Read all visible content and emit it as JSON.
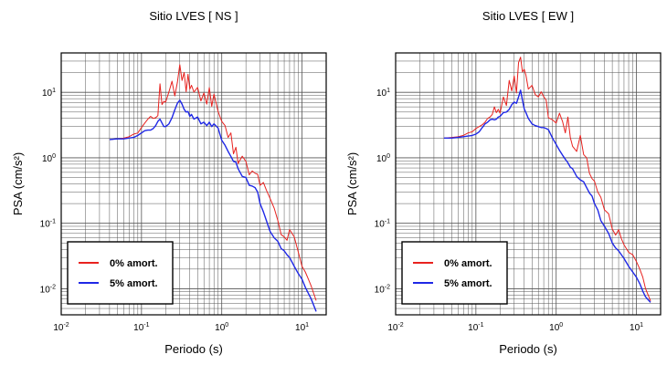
{
  "chart_data": [
    {
      "type": "line",
      "title": "Sitio LVES [ NS ]",
      "xlabel": "Periodo (s)",
      "ylabel": "PSA (cm/s²)",
      "xscale": "log",
      "yscale": "log",
      "xlim": [
        0.01,
        20
      ],
      "ylim": [
        0.004,
        40
      ],
      "grid": true,
      "legend_position": "bottom-left",
      "xticks": [
        {
          "value": 0.01,
          "base": "10",
          "exp": "-2"
        },
        {
          "value": 0.1,
          "base": "10",
          "exp": "-1"
        },
        {
          "value": 1,
          "base": "10",
          "exp": "0"
        },
        {
          "value": 10,
          "base": "10",
          "exp": "1"
        }
      ],
      "yticks": [
        {
          "value": 0.01,
          "base": "10",
          "exp": "-2"
        },
        {
          "value": 0.1,
          "base": "10",
          "exp": "-1"
        },
        {
          "value": 1,
          "base": "10",
          "exp": "0"
        },
        {
          "value": 10,
          "base": "10",
          "exp": "1"
        }
      ],
      "series": [
        {
          "name": "0% amort.",
          "color": "#e8221f",
          "x": [
            0.04,
            0.05,
            0.06,
            0.07,
            0.08,
            0.09,
            0.1,
            0.11,
            0.12,
            0.13,
            0.14,
            0.15,
            0.16,
            0.17,
            0.18,
            0.19,
            0.2,
            0.22,
            0.24,
            0.26,
            0.28,
            0.3,
            0.32,
            0.34,
            0.36,
            0.38,
            0.4,
            0.42,
            0.45,
            0.5,
            0.55,
            0.6,
            0.65,
            0.7,
            0.75,
            0.8,
            0.9,
            1.0,
            1.1,
            1.2,
            1.3,
            1.4,
            1.5,
            1.6,
            1.8,
            2.0,
            2.2,
            2.4,
            2.6,
            2.8,
            3.0,
            3.3,
            3.6,
            4.0,
            4.5,
            5.0,
            5.5,
            6.0,
            6.5,
            7.0,
            8.0,
            9.0,
            10.0,
            11.0,
            12.0,
            13.0,
            15.0
          ],
          "y": [
            1.9,
            1.95,
            2.0,
            2.1,
            2.3,
            2.4,
            2.9,
            3.4,
            3.9,
            4.3,
            4.0,
            4.1,
            4.4,
            13.5,
            6.5,
            7.3,
            7.1,
            10.2,
            14.8,
            8.8,
            14.2,
            26.5,
            15.2,
            20.1,
            10.2,
            18.9,
            11.2,
            12.8,
            10.1,
            11.9,
            7.4,
            9.8,
            6.6,
            11.8,
            6.1,
            9.4,
            5.1,
            3.6,
            3.1,
            2.05,
            2.4,
            1.15,
            1.45,
            0.82,
            1.06,
            0.88,
            0.55,
            0.63,
            0.58,
            0.56,
            0.38,
            0.42,
            0.32,
            0.24,
            0.17,
            0.11,
            0.067,
            0.062,
            0.055,
            0.08,
            0.062,
            0.036,
            0.022,
            0.018,
            0.014,
            0.011,
            0.0066
          ]
        },
        {
          "name": "5% amort.",
          "color": "#1f28e6",
          "x": [
            0.04,
            0.05,
            0.06,
            0.07,
            0.08,
            0.09,
            0.1,
            0.11,
            0.12,
            0.13,
            0.14,
            0.15,
            0.16,
            0.17,
            0.18,
            0.19,
            0.2,
            0.22,
            0.24,
            0.26,
            0.28,
            0.3,
            0.32,
            0.34,
            0.36,
            0.38,
            0.4,
            0.42,
            0.45,
            0.5,
            0.55,
            0.6,
            0.65,
            0.7,
            0.75,
            0.8,
            0.9,
            1.0,
            1.1,
            1.2,
            1.3,
            1.4,
            1.5,
            1.6,
            1.8,
            2.0,
            2.2,
            2.4,
            2.6,
            2.8,
            3.0,
            3.3,
            3.6,
            4.0,
            4.5,
            5.0,
            5.5,
            6.0,
            6.5,
            7.0,
            8.0,
            9.0,
            10.0,
            11.0,
            12.0,
            13.0,
            15.0
          ],
          "y": [
            1.9,
            1.95,
            1.95,
            2.0,
            2.05,
            2.2,
            2.4,
            2.6,
            2.65,
            2.65,
            2.8,
            3.1,
            3.6,
            3.9,
            3.4,
            3.0,
            3.0,
            3.3,
            4.1,
            5.4,
            6.8,
            7.6,
            6.6,
            5.5,
            5.0,
            5.1,
            4.3,
            4.6,
            3.9,
            4.2,
            3.3,
            3.5,
            3.1,
            3.5,
            3.0,
            3.3,
            2.85,
            1.85,
            1.55,
            1.25,
            1.05,
            0.88,
            0.86,
            0.68,
            0.52,
            0.5,
            0.38,
            0.37,
            0.35,
            0.3,
            0.2,
            0.15,
            0.11,
            0.075,
            0.06,
            0.053,
            0.041,
            0.038,
            0.033,
            0.03,
            0.022,
            0.017,
            0.014,
            0.0105,
            0.0085,
            0.007,
            0.0045
          ]
        }
      ]
    },
    {
      "type": "line",
      "title": "Sitio LVES [ EW ]",
      "xlabel": "Periodo (s)",
      "ylabel": "PSA (cm/s²)",
      "xscale": "log",
      "yscale": "log",
      "xlim": [
        0.01,
        20
      ],
      "ylim": [
        0.004,
        40
      ],
      "grid": true,
      "legend_position": "bottom-left",
      "xticks": [
        {
          "value": 0.01,
          "base": "10",
          "exp": "-2"
        },
        {
          "value": 0.1,
          "base": "10",
          "exp": "-1"
        },
        {
          "value": 1,
          "base": "10",
          "exp": "0"
        },
        {
          "value": 10,
          "base": "10",
          "exp": "1"
        }
      ],
      "yticks": [
        {
          "value": 0.01,
          "base": "10",
          "exp": "-2"
        },
        {
          "value": 0.1,
          "base": "10",
          "exp": "-1"
        },
        {
          "value": 1,
          "base": "10",
          "exp": "0"
        },
        {
          "value": 10,
          "base": "10",
          "exp": "1"
        }
      ],
      "series": [
        {
          "name": "0% amort.",
          "color": "#e8221f",
          "x": [
            0.04,
            0.05,
            0.06,
            0.07,
            0.08,
            0.09,
            0.1,
            0.11,
            0.12,
            0.13,
            0.14,
            0.15,
            0.16,
            0.17,
            0.18,
            0.19,
            0.2,
            0.22,
            0.24,
            0.26,
            0.28,
            0.3,
            0.32,
            0.34,
            0.36,
            0.38,
            0.4,
            0.42,
            0.45,
            0.5,
            0.55,
            0.6,
            0.65,
            0.7,
            0.75,
            0.8,
            0.9,
            1.0,
            1.1,
            1.2,
            1.3,
            1.4,
            1.5,
            1.6,
            1.8,
            2.0,
            2.2,
            2.4,
            2.6,
            2.8,
            3.0,
            3.3,
            3.6,
            4.0,
            4.5,
            5.0,
            5.5,
            6.0,
            6.5,
            7.0,
            8.0,
            9.0,
            10.0,
            11.0,
            12.0,
            13.0,
            15.0
          ],
          "y": [
            2.0,
            2.05,
            2.1,
            2.2,
            2.4,
            2.5,
            2.8,
            3.0,
            3.2,
            3.5,
            4.0,
            4.2,
            4.6,
            6.0,
            4.9,
            5.5,
            4.8,
            8.5,
            6.3,
            15.2,
            10.5,
            17.8,
            9.8,
            28.5,
            34.5,
            20.5,
            22.5,
            18.3,
            11.2,
            12.8,
            9.2,
            8.5,
            10.2,
            8.6,
            7.6,
            4.1,
            3.8,
            3.4,
            4.8,
            3.6,
            2.4,
            4.2,
            2.05,
            1.5,
            1.25,
            2.2,
            1.12,
            1.0,
            0.58,
            0.48,
            0.44,
            0.3,
            0.25,
            0.16,
            0.14,
            0.082,
            0.066,
            0.08,
            0.058,
            0.047,
            0.036,
            0.033,
            0.026,
            0.02,
            0.015,
            0.01,
            0.0065
          ]
        },
        {
          "name": "5% amort.",
          "color": "#1f28e6",
          "x": [
            0.04,
            0.05,
            0.06,
            0.07,
            0.08,
            0.09,
            0.1,
            0.11,
            0.12,
            0.13,
            0.14,
            0.15,
            0.16,
            0.17,
            0.18,
            0.19,
            0.2,
            0.22,
            0.24,
            0.26,
            0.28,
            0.3,
            0.32,
            0.34,
            0.36,
            0.38,
            0.4,
            0.42,
            0.45,
            0.5,
            0.55,
            0.6,
            0.65,
            0.7,
            0.75,
            0.8,
            0.9,
            1.0,
            1.1,
            1.2,
            1.3,
            1.4,
            1.5,
            1.6,
            1.8,
            2.0,
            2.2,
            2.4,
            2.6,
            2.8,
            3.0,
            3.3,
            3.6,
            4.0,
            4.5,
            5.0,
            5.5,
            6.0,
            6.5,
            7.0,
            8.0,
            9.0,
            10.0,
            11.0,
            12.0,
            13.0,
            15.0
          ],
          "y": [
            2.0,
            2.0,
            2.05,
            2.1,
            2.15,
            2.2,
            2.3,
            2.5,
            2.9,
            3.3,
            3.5,
            3.8,
            3.9,
            3.8,
            3.9,
            4.2,
            4.3,
            4.9,
            5.0,
            5.5,
            6.5,
            7.1,
            6.8,
            8.5,
            10.8,
            7.6,
            5.6,
            4.9,
            4.0,
            3.3,
            3.1,
            3.0,
            2.9,
            2.9,
            2.8,
            2.7,
            2.0,
            1.6,
            1.3,
            1.1,
            0.95,
            0.84,
            0.72,
            0.68,
            0.52,
            0.46,
            0.43,
            0.35,
            0.29,
            0.26,
            0.2,
            0.16,
            0.11,
            0.09,
            0.07,
            0.05,
            0.042,
            0.038,
            0.033,
            0.029,
            0.022,
            0.018,
            0.015,
            0.012,
            0.0092,
            0.0075,
            0.0062
          ]
        }
      ]
    }
  ]
}
